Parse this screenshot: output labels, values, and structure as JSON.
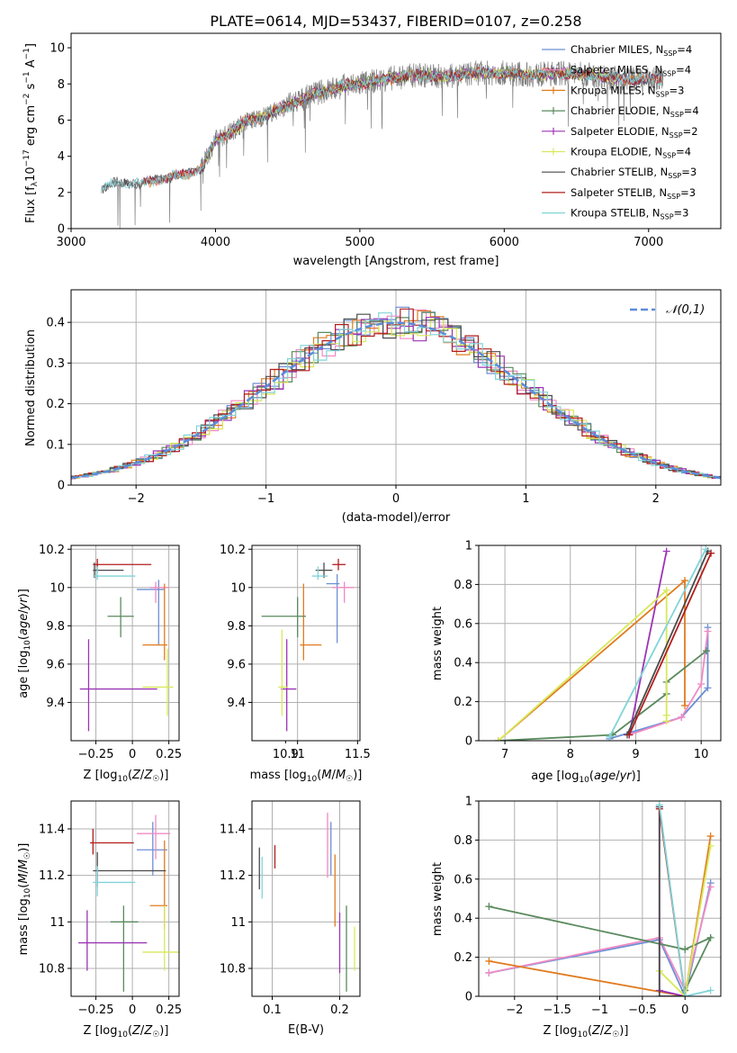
{
  "colors": {
    "Chabrier MILES": "#6b8fd6",
    "Salpeter MILES": "#f08ac4",
    "Kroupa MILES": "#e07b1f",
    "Chabrier ELODIE": "#5a8a5e",
    "Salpeter ELODIE": "#9b35b5",
    "Kroupa ELODIE": "#d9e85a",
    "Chabrier STELIB": "#4a4a4a",
    "Salpeter STELIB": "#b21d1d",
    "Kroupa STELIB": "#80d4d8",
    "normal": "#5b8dd9",
    "data": "#808080"
  },
  "chart_data": [
    {
      "id": "spectrum",
      "type": "line",
      "title": "PLATE=0614, MJD=53437, FIBERID=0107, z=0.258",
      "xlabel": "wavelength [Angstrom, rest frame]",
      "ylabel": "Flux [f_λ10^-17 erg cm^-2 s^-1 A^-1]",
      "xlim": [
        3000,
        7500
      ],
      "ylim": [
        0,
        10.8
      ],
      "xticks": [
        3000,
        4000,
        5000,
        6000,
        7000
      ],
      "yticks": [
        0,
        2,
        4,
        6,
        8,
        10
      ],
      "legend_position": "top-right",
      "legend": [
        "Chabrier MILES, N_SSP=4",
        "Salpeter MILES, N_SSP=4",
        "Kroupa MILES, N_SSP=3",
        "Chabrier ELODIE, N_SSP=4",
        "Salpeter ELODIE, N_SSP=2",
        "Kroupa ELODIE, N_SSP=4",
        "Chabrier STELIB, N_SSP=3",
        "Salpeter STELIB, N_SSP=3",
        "Kroupa STELIB, N_SSP=3"
      ],
      "continuum": {
        "x": [
          3210,
          3300,
          3500,
          3700,
          3800,
          3900,
          4000,
          4100,
          4200,
          4300,
          4500,
          4700,
          4900,
          5000,
          5200,
          5400,
          5600,
          5800,
          6000,
          6200,
          6400,
          6600,
          6800,
          7000,
          7100
        ],
        "y": [
          2.2,
          2.5,
          2.5,
          2.9,
          3.0,
          3.3,
          4.9,
          5.3,
          5.9,
          6.1,
          6.8,
          7.5,
          7.9,
          8.0,
          8.3,
          8.5,
          8.4,
          8.6,
          8.6,
          8.5,
          8.6,
          8.5,
          8.3,
          8.2,
          8.3
        ]
      }
    },
    {
      "id": "residuals",
      "type": "line",
      "xlabel": "(data-model)/error",
      "ylabel": "Normed distribution",
      "xlim": [
        -2.5,
        2.5
      ],
      "ylim": [
        0,
        0.48
      ],
      "xticks": [
        -2,
        -1,
        0,
        1,
        2
      ],
      "yticks": [
        0.0,
        0.1,
        0.2,
        0.3,
        0.4
      ],
      "legend": [
        "𝒩(0,1)"
      ],
      "legend_position": "top-right"
    },
    {
      "id": "age-vs-Z",
      "type": "scatter",
      "xlabel": "Z [log10(Z/Z☉)]",
      "ylabel": "age  [log10(age/yr)]",
      "xlim": [
        -0.42,
        0.32
      ],
      "ylim": [
        9.2,
        10.22
      ],
      "xticks": [
        -0.25,
        0.0,
        0.25
      ],
      "yticks": [
        9.4,
        9.6,
        9.8,
        10.0,
        10.2
      ],
      "points": [
        {
          "model": "Chabrier MILES",
          "x": 0.18,
          "xerr": [
            0.15,
            0.04
          ],
          "y": 9.99,
          "yerr": [
            0.29,
            0.05
          ]
        },
        {
          "model": "Salpeter MILES",
          "x": 0.16,
          "xerr": [
            0.04,
            0.09
          ],
          "y": 10.0,
          "yerr": [
            0.08,
            0.03
          ]
        },
        {
          "model": "Kroupa MILES",
          "x": 0.22,
          "xerr": [
            0.15,
            0.02
          ],
          "y": 9.7,
          "yerr": [
            0.08,
            0.32
          ]
        },
        {
          "model": "Chabrier ELODIE",
          "x": -0.08,
          "xerr": [
            0.09,
            0.09
          ],
          "y": 9.85,
          "yerr": [
            0.11,
            0.1
          ]
        },
        {
          "model": "Salpeter ELODIE",
          "x": -0.3,
          "xerr": [
            0.06,
            0.47
          ],
          "y": 9.47,
          "yerr": [
            0.22,
            0.26
          ]
        },
        {
          "model": "Kroupa ELODIE",
          "x": 0.24,
          "xerr": [
            0.17,
            0.04
          ],
          "y": 9.48,
          "yerr": [
            0.15,
            0.2
          ]
        },
        {
          "model": "Chabrier STELIB",
          "x": -0.26,
          "xerr": [
            0.01,
            0.2
          ],
          "y": 10.09,
          "yerr": [
            0.04,
            0.04
          ]
        },
        {
          "model": "Salpeter STELIB",
          "x": -0.24,
          "xerr": [
            0.03,
            0.37
          ],
          "y": 10.12,
          "yerr": [
            0.03,
            0.03
          ]
        },
        {
          "model": "Kroupa STELIB",
          "x": -0.24,
          "xerr": [
            0.03,
            0.26
          ],
          "y": 10.06,
          "yerr": [
            0.02,
            0.05
          ]
        }
      ]
    },
    {
      "id": "age-vs-mass",
      "type": "scatter",
      "xlabel": "mass [log10(M/M☉)]",
      "ylabel": "",
      "xlim": [
        10.62,
        11.52
      ],
      "ylim": [
        9.2,
        10.22
      ],
      "xticks": [
        11.0,
        11.5
      ],
      "xticklabels": [
        "11.0",
        "11.5"
      ],
      "minor_xticks": [
        10.9
      ],
      "minor_xticklabels": [
        "10.9"
      ],
      "yticks": [
        9.4,
        9.6,
        9.8,
        10.0,
        10.2
      ],
      "points": [
        {
          "model": "Chabrier MILES",
          "x": 11.33,
          "xerr": [
            0.09,
            0.02
          ],
          "y": 10.02,
          "yerr": [
            0.31,
            0.05
          ]
        },
        {
          "model": "Salpeter MILES",
          "x": 11.39,
          "xerr": [
            0.1,
            0.08
          ],
          "y": 10.0,
          "yerr": [
            0.08,
            0.03
          ]
        },
        {
          "model": "Kroupa MILES",
          "x": 11.05,
          "xerr": [
            0.03,
            0.15
          ],
          "y": 9.7,
          "yerr": [
            0.08,
            0.32
          ]
        },
        {
          "model": "Chabrier ELODIE",
          "x": 11.0,
          "xerr": [
            0.3,
            0.07
          ],
          "y": 9.85,
          "yerr": [
            0.11,
            0.1
          ]
        },
        {
          "model": "Salpeter ELODIE",
          "x": 10.91,
          "xerr": [
            0.05,
            0.08
          ],
          "y": 9.47,
          "yerr": [
            0.22,
            0.26
          ]
        },
        {
          "model": "Kroupa ELODIE",
          "x": 10.87,
          "xerr": [
            0.03,
            0.05
          ],
          "y": 9.48,
          "yerr": [
            0.15,
            0.3
          ]
        },
        {
          "model": "Chabrier STELIB",
          "x": 11.22,
          "xerr": [
            0.07,
            0.07
          ],
          "y": 10.09,
          "yerr": [
            0.04,
            0.04
          ]
        },
        {
          "model": "Salpeter STELIB",
          "x": 11.34,
          "xerr": [
            0.05,
            0.06
          ],
          "y": 10.12,
          "yerr": [
            0.03,
            0.03
          ]
        },
        {
          "model": "Kroupa STELIB",
          "x": 11.17,
          "xerr": [
            0.05,
            0.08
          ],
          "y": 10.06,
          "yerr": [
            0.02,
            0.05
          ]
        }
      ]
    },
    {
      "id": "weight-vs-age",
      "type": "line",
      "xlabel": "age  [log10(age/yr)]",
      "ylabel": "mass weight",
      "xlim": [
        6.6,
        10.3
      ],
      "ylim": [
        0,
        1
      ],
      "xticks": [
        7,
        8,
        9,
        10
      ],
      "yticks": [
        0.0,
        0.2,
        0.4,
        0.6,
        0.8,
        1.0
      ],
      "series": [
        {
          "model": "Chabrier MILES",
          "x": [
            8.6,
            9.7,
            10.1,
            10.1
          ],
          "y": [
            0.01,
            0.12,
            0.27,
            0.58
          ]
        },
        {
          "model": "Salpeter MILES",
          "x": [
            8.9,
            9.7,
            10.0,
            10.1
          ],
          "y": [
            0.03,
            0.12,
            0.29,
            0.56
          ]
        },
        {
          "model": "Kroupa MILES",
          "x": [
            6.9,
            9.75,
            9.75
          ],
          "y": [
            0.0,
            0.82,
            0.18
          ]
        },
        {
          "model": "Chabrier ELODIE",
          "x": [
            6.9,
            8.65,
            9.47,
            9.47,
            10.08
          ],
          "y": [
            0.0,
            0.03,
            0.24,
            0.3,
            0.46
          ]
        },
        {
          "model": "Salpeter ELODIE",
          "x": [
            8.9,
            9.47
          ],
          "y": [
            0.03,
            0.97
          ]
        },
        {
          "model": "Kroupa ELODIE",
          "x": [
            6.9,
            9.47,
            9.47,
            9.47
          ],
          "y": [
            0.0,
            0.77,
            0.1,
            0.13
          ]
        },
        {
          "model": "Chabrier STELIB",
          "x": [
            8.87,
            10.1,
            10.1
          ],
          "y": [
            0.03,
            0.97,
            0.97
          ]
        },
        {
          "model": "Salpeter STELIB",
          "x": [
            8.9,
            10.15
          ],
          "y": [
            0.03,
            0.96
          ]
        },
        {
          "model": "Kroupa STELIB",
          "x": [
            8.6,
            10.07
          ],
          "y": [
            0.02,
            0.98
          ]
        }
      ]
    },
    {
      "id": "mass-vs-Z",
      "type": "scatter",
      "xlabel": "Z [log10(Z/Z☉)]",
      "ylabel": "mass [log10(M/M☉)]",
      "xlim": [
        -0.42,
        0.32
      ],
      "ylim": [
        10.68,
        11.52
      ],
      "xticks": [
        -0.25,
        0.0,
        0.25
      ],
      "yticks": [
        10.8,
        11.0,
        11.2,
        11.4
      ],
      "points": [
        {
          "model": "Chabrier MILES",
          "x": 0.14,
          "xerr": [
            0.11,
            0.1
          ],
          "y": 11.31,
          "yerr": [
            0.11,
            0.12
          ]
        },
        {
          "model": "Salpeter MILES",
          "x": 0.16,
          "xerr": [
            0.13,
            0.1
          ],
          "y": 11.38,
          "yerr": [
            0.11,
            0.08
          ]
        },
        {
          "model": "Kroupa MILES",
          "x": 0.22,
          "xerr": [
            0.1,
            0.02
          ],
          "y": 11.07,
          "yerr": [
            0.1,
            0.28
          ]
        },
        {
          "model": "Chabrier ELODIE",
          "x": -0.06,
          "xerr": [
            0.09,
            0.1
          ],
          "y": 11.0,
          "yerr": [
            0.3,
            0.07
          ]
        },
        {
          "model": "Salpeter ELODIE",
          "x": -0.31,
          "xerr": [
            0.06,
            0.41
          ],
          "y": 10.91,
          "yerr": [
            0.12,
            0.14
          ]
        },
        {
          "model": "Kroupa ELODIE",
          "x": 0.22,
          "xerr": [
            0.15,
            0.1
          ],
          "y": 10.87,
          "yerr": [
            0.08,
            0.2
          ]
        },
        {
          "model": "Chabrier STELIB",
          "x": -0.24,
          "xerr": [
            0.03,
            0.47
          ],
          "y": 11.22,
          "yerr": [
            0.07,
            0.08
          ]
        },
        {
          "model": "Salpeter STELIB",
          "x": -0.27,
          "xerr": [
            0.02,
            0.28
          ],
          "y": 11.34,
          "yerr": [
            0.05,
            0.06
          ]
        },
        {
          "model": "Kroupa STELIB",
          "x": -0.24,
          "xerr": [
            0.03,
            0.26
          ],
          "y": 11.17,
          "yerr": [
            0.06,
            0.07
          ]
        }
      ]
    },
    {
      "id": "mass-vs-ebv",
      "type": "scatter",
      "xlabel": "E(B-V)",
      "ylabel": "",
      "xlim": [
        0.07,
        0.23
      ],
      "ylim": [
        10.68,
        11.52
      ],
      "xticks": [
        0.1,
        0.2
      ],
      "yticks": [
        10.8,
        11.0,
        11.2,
        11.4
      ],
      "points": [
        {
          "model": "Chabrier MILES",
          "x": 0.187,
          "y": 11.31,
          "yerr": [
            0.11,
            0.12
          ]
        },
        {
          "model": "Salpeter MILES",
          "x": 0.182,
          "y": 11.34,
          "yerr": [
            0.15,
            0.13
          ]
        },
        {
          "model": "Kroupa MILES",
          "x": 0.193,
          "y": 11.11,
          "yerr": [
            0.13,
            0.18
          ]
        },
        {
          "model": "Chabrier ELODIE",
          "x": 0.21,
          "y": 10.91,
          "yerr": [
            0.21,
            0.16
          ]
        },
        {
          "model": "Salpeter ELODIE",
          "x": 0.2,
          "y": 10.9,
          "yerr": [
            0.12,
            0.14
          ]
        },
        {
          "model": "Kroupa ELODIE",
          "x": 0.222,
          "y": 10.87,
          "yerr": [
            0.08,
            0.11
          ]
        },
        {
          "model": "Chabrier STELIB",
          "x": 0.081,
          "y": 11.22,
          "yerr": [
            0.08,
            0.1
          ]
        },
        {
          "model": "Salpeter STELIB",
          "x": 0.104,
          "y": 11.27,
          "yerr": [
            0.04,
            0.06
          ]
        },
        {
          "model": "Kroupa STELIB",
          "x": 0.085,
          "y": 11.19,
          "yerr": [
            0.09,
            0.09
          ]
        }
      ]
    },
    {
      "id": "weight-vs-Z",
      "type": "line",
      "xlabel": "Z [log10(Z/Z☉)]",
      "ylabel": "mass weight",
      "xlim": [
        -2.42,
        0.42
      ],
      "ylim": [
        0,
        1
      ],
      "xticks": [
        -2.0,
        -1.5,
        -1.0,
        -0.5,
        0.0
      ],
      "yticks": [
        0.0,
        0.2,
        0.4,
        0.6,
        0.8,
        1.0
      ],
      "series": [
        {
          "model": "Chabrier MILES",
          "x": [
            -2.3,
            -0.3,
            0.0,
            0.3
          ],
          "y": [
            0.12,
            0.29,
            0.0,
            0.58
          ]
        },
        {
          "model": "Salpeter MILES",
          "x": [
            -2.3,
            -0.3,
            0.0,
            0.3
          ],
          "y": [
            0.12,
            0.3,
            0.03,
            0.56
          ]
        },
        {
          "model": "Kroupa MILES",
          "x": [
            -2.3,
            0.0,
            0.3
          ],
          "y": [
            0.18,
            0.0,
            0.82
          ]
        },
        {
          "model": "Chabrier ELODIE",
          "x": [
            -2.3,
            0.0,
            0.3,
            0.0
          ],
          "y": [
            0.46,
            0.24,
            0.3,
            0.03
          ]
        },
        {
          "model": "Salpeter ELODIE",
          "x": [
            -0.3,
            -0.3,
            0.0
          ],
          "y": [
            0.97,
            0.03,
            0.0
          ]
        },
        {
          "model": "Kroupa ELODIE",
          "x": [
            -0.3,
            0.0,
            0.3
          ],
          "y": [
            0.13,
            0.0,
            0.77
          ]
        },
        {
          "model": "Chabrier STELIB",
          "x": [
            -0.3,
            -0.3,
            0.0
          ],
          "y": [
            0.97,
            0.0,
            0.0
          ]
        },
        {
          "model": "Salpeter STELIB",
          "x": [
            -0.3,
            0.0
          ],
          "y": [
            0.96,
            0.0
          ]
        },
        {
          "model": "Kroupa STELIB",
          "x": [
            -0.3,
            0.0,
            0.3
          ],
          "y": [
            0.98,
            0.0,
            0.03
          ]
        }
      ]
    }
  ]
}
